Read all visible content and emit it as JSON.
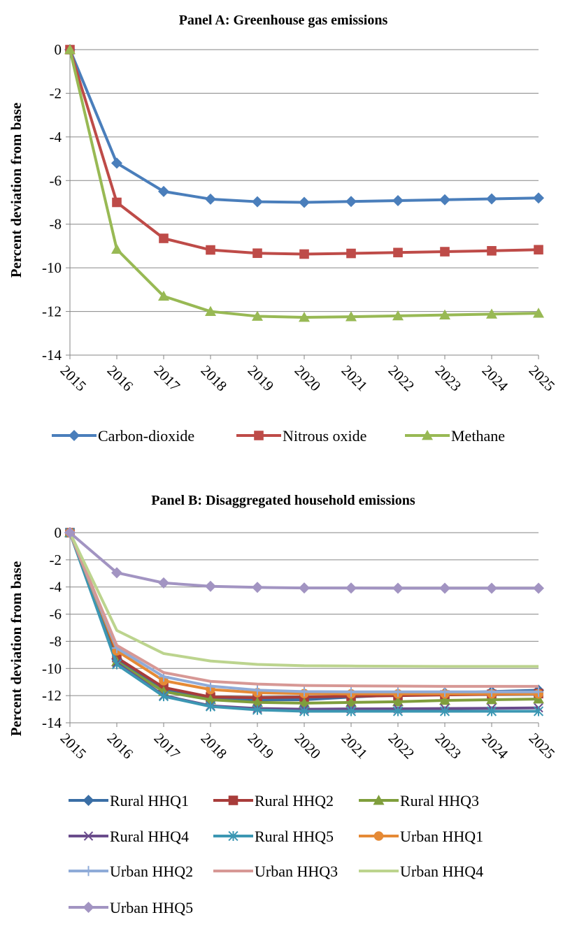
{
  "chart_data": [
    {
      "type": "line",
      "title": "Panel A: Greenhouse gas emissions",
      "ylabel": "Percent deviation from base",
      "xlabel": "",
      "ylim": [
        -14,
        0
      ],
      "yticks": [
        0,
        -2,
        -4,
        -6,
        -8,
        -10,
        -12,
        -14
      ],
      "grid": true,
      "legend": "bottom",
      "categories": [
        "2015",
        "2016",
        "2017",
        "2018",
        "2019",
        "2020",
        "2021",
        "2022",
        "2023",
        "2024",
        "2025"
      ],
      "series": [
        {
          "name": "Carbon-dioxide",
          "color": "#4a7ebb",
          "marker": "diamond",
          "values": [
            0,
            -5.2,
            -6.5,
            -6.85,
            -6.97,
            -7.0,
            -6.96,
            -6.92,
            -6.88,
            -6.84,
            -6.8
          ]
        },
        {
          "name": "Nitrous oxide",
          "color": "#be4b48",
          "marker": "square",
          "values": [
            0,
            -7.0,
            -8.65,
            -9.18,
            -9.33,
            -9.37,
            -9.34,
            -9.3,
            -9.26,
            -9.22,
            -9.17
          ]
        },
        {
          "name": "Methane",
          "color": "#98b954",
          "marker": "triangle",
          "values": [
            0,
            -9.15,
            -11.3,
            -12.0,
            -12.22,
            -12.27,
            -12.24,
            -12.2,
            -12.16,
            -12.12,
            -12.08
          ]
        }
      ]
    },
    {
      "type": "line",
      "title": "Panel B: Disaggregated household emissions",
      "ylabel": "Percent deviation from base",
      "xlabel": "",
      "ylim": [
        -14,
        0
      ],
      "yticks": [
        0,
        -2,
        -4,
        -6,
        -8,
        -10,
        -12,
        -14
      ],
      "grid": true,
      "legend": "bottom",
      "categories": [
        "2015",
        "2016",
        "2017",
        "2018",
        "2019",
        "2020",
        "2021",
        "2022",
        "2023",
        "2024",
        "2025"
      ],
      "series": [
        {
          "name": "Rural HHQ1",
          "color": "#3a6ea5",
          "marker": "diamond",
          "values": [
            0,
            -9.3,
            -11.6,
            -12.2,
            -12.3,
            -12.3,
            -12.1,
            -11.95,
            -11.8,
            -11.7,
            -11.6
          ]
        },
        {
          "name": "Rural HHQ2",
          "color": "#a83c3a",
          "marker": "square",
          "values": [
            0,
            -9.2,
            -11.4,
            -12.1,
            -12.15,
            -12.1,
            -12.05,
            -12.0,
            -11.95,
            -11.9,
            -11.85
          ]
        },
        {
          "name": "Rural HHQ3",
          "color": "#7f9e3c",
          "marker": "triangle",
          "values": [
            0,
            -9.5,
            -11.7,
            -12.3,
            -12.5,
            -12.55,
            -12.5,
            -12.45,
            -12.35,
            -12.3,
            -12.25
          ]
        },
        {
          "name": "Rural HHQ4",
          "color": "#6a4c8c",
          "marker": "x",
          "values": [
            0,
            -9.6,
            -12.0,
            -12.75,
            -12.95,
            -13.0,
            -12.98,
            -12.97,
            -12.95,
            -12.93,
            -12.9
          ]
        },
        {
          "name": "Rural HHQ5",
          "color": "#3c97b3",
          "marker": "star",
          "values": [
            0,
            -9.7,
            -12.05,
            -12.8,
            -13.05,
            -13.15,
            -13.15,
            -13.15,
            -13.15,
            -13.15,
            -13.15
          ]
        },
        {
          "name": "Urban HHQ1",
          "color": "#e58a36",
          "marker": "circle",
          "values": [
            0,
            -8.7,
            -10.9,
            -11.55,
            -11.78,
            -11.85,
            -11.87,
            -11.87,
            -11.87,
            -11.87,
            -11.87
          ]
        },
        {
          "name": "Urban HHQ2",
          "color": "#8fabd8",
          "marker": "plus",
          "values": [
            0,
            -8.5,
            -10.6,
            -11.3,
            -11.6,
            -11.7,
            -11.72,
            -11.72,
            -11.72,
            -11.72,
            -11.72
          ]
        },
        {
          "name": "Urban HHQ3",
          "color": "#d79895",
          "marker": "none",
          "values": [
            0,
            -8.3,
            -10.3,
            -10.95,
            -11.15,
            -11.25,
            -11.28,
            -11.3,
            -11.32,
            -11.32,
            -11.32
          ]
        },
        {
          "name": "Urban HHQ4",
          "color": "#bcd48e",
          "marker": "none",
          "values": [
            0,
            -7.2,
            -8.9,
            -9.45,
            -9.7,
            -9.8,
            -9.82,
            -9.84,
            -9.85,
            -9.85,
            -9.85
          ]
        },
        {
          "name": "Urban HHQ5",
          "color": "#a294c2",
          "marker": "diamond",
          "values": [
            0,
            -2.95,
            -3.7,
            -3.95,
            -4.03,
            -4.07,
            -4.08,
            -4.09,
            -4.09,
            -4.09,
            -4.09
          ]
        }
      ]
    }
  ]
}
